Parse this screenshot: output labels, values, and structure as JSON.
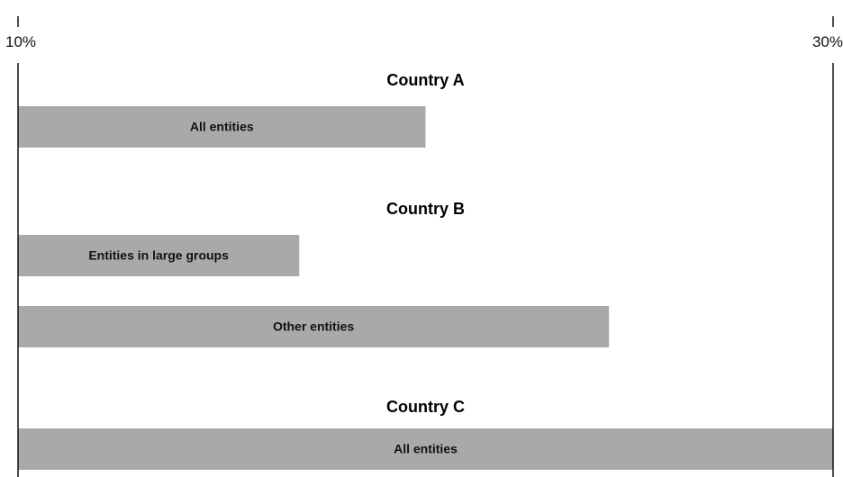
{
  "chart_data": {
    "type": "bar",
    "orientation": "horizontal",
    "xlim": [
      10,
      30
    ],
    "x_ticks": [
      {
        "value": 10,
        "label": "10%"
      },
      {
        "value": 30,
        "label": "30%"
      }
    ],
    "groups": [
      {
        "title": "Country A",
        "bars": [
          {
            "label": "All entities",
            "value": 20
          }
        ]
      },
      {
        "title": "Country B",
        "bars": [
          {
            "label": "Entities in large groups",
            "value": 16.9
          },
          {
            "label": "Other entities",
            "value": 24.5
          }
        ]
      },
      {
        "title": "Country C",
        "bars": [
          {
            "label": "All entities",
            "value": 30
          }
        ]
      }
    ],
    "colors": {
      "bar": "#a9a9a9",
      "axis": "#111111"
    },
    "grid": false,
    "legend": "none"
  }
}
